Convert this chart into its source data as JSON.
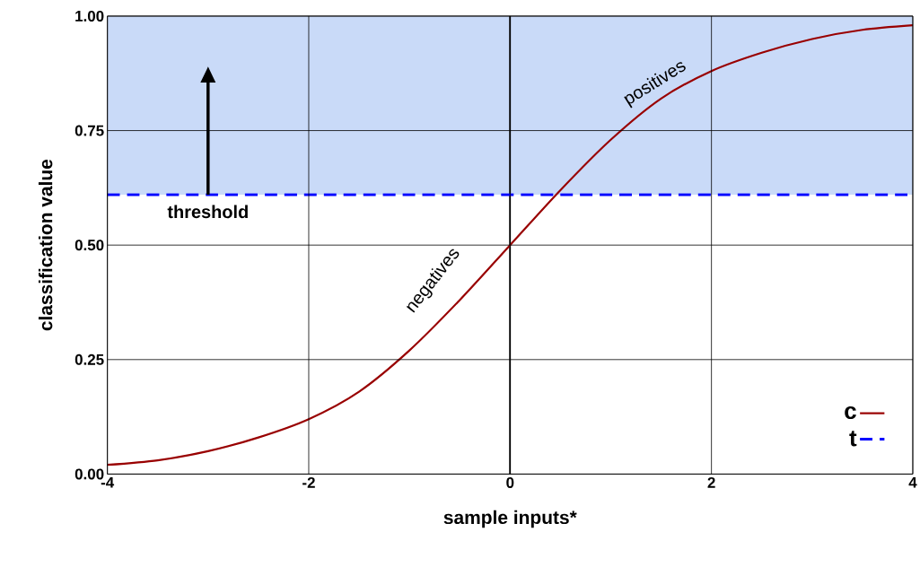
{
  "chart_data": {
    "type": "line",
    "xlabel": "sample inputs*",
    "ylabel": "classification value",
    "xlim": [
      -4,
      4
    ],
    "ylim": [
      0,
      1
    ],
    "xticks": [
      -4,
      -2,
      0,
      2,
      4
    ],
    "yticks": [
      {
        "value": 0,
        "label": "0.00"
      },
      {
        "value": 0.25,
        "label": "0.25"
      },
      {
        "value": 0.5,
        "label": "0.50"
      },
      {
        "value": 0.75,
        "label": "0.75"
      },
      {
        "value": 1,
        "label": "1.00"
      }
    ],
    "grid": true,
    "legend": "bottom right",
    "marker": "none",
    "x": [
      -4,
      -3.5,
      -3,
      -2.5,
      -2,
      -1.5,
      -1,
      -0.5,
      0,
      0.5,
      1,
      1.5,
      2,
      2.5,
      3,
      3.5,
      4
    ],
    "series": [
      {
        "name": "c",
        "color": "#990000",
        "line_style": "solid",
        "values": [
          0.02,
          0.03,
          0.05,
          0.08,
          0.12,
          0.18,
          0.27,
          0.38,
          0.5,
          0.62,
          0.73,
          0.82,
          0.88,
          0.92,
          0.95,
          0.97,
          0.98
        ]
      },
      {
        "name": "t",
        "color": "#0000ff",
        "line_style": "dashed",
        "x": [
          -4,
          4
        ],
        "values": [
          0.61,
          0.61
        ]
      }
    ],
    "bands": [
      {
        "axis": "y",
        "from": 0.61,
        "to": 1,
        "color": "#c9daf8"
      }
    ],
    "ref_lines": [
      {
        "axis": "x",
        "value": 0,
        "color": "#000000"
      }
    ],
    "annotations": [
      {
        "text": "threshold",
        "x": -3,
        "y": 0.61
      },
      "negatives",
      "positives"
    ]
  }
}
